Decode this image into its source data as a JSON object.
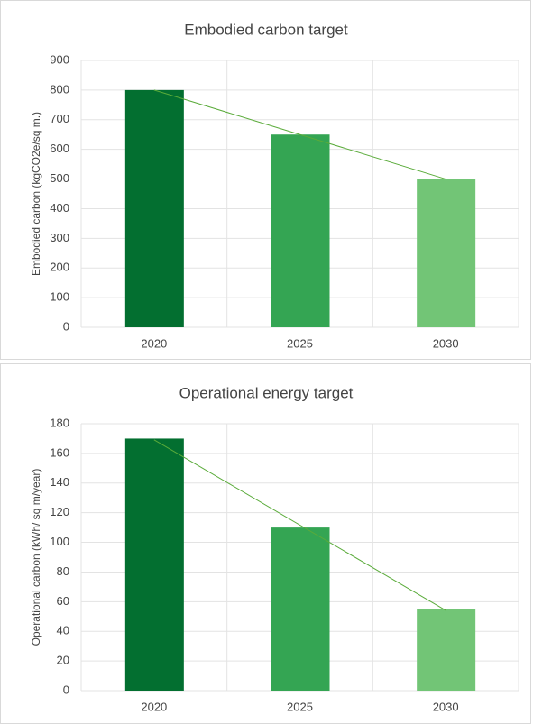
{
  "chart_data": [
    {
      "type": "bar",
      "title": "Embodied carbon target",
      "y_label": "Embodied carbon (kgCO2e/sq m.)",
      "categories": [
        "2020",
        "2025",
        "2030"
      ],
      "values": [
        800,
        650,
        500
      ],
      "colors": [
        "#036f30",
        "#34a553",
        "#72c576"
      ],
      "ylim": [
        0,
        900
      ],
      "yticks": [
        0,
        100,
        200,
        300,
        400,
        500,
        600,
        700,
        800,
        900
      ],
      "grid": true,
      "trendline": {
        "type": "linear",
        "color": "#5aab3a"
      }
    },
    {
      "type": "bar",
      "title": "Operational energy target",
      "y_label": "Operational carbon (kWh/ sq m/year)",
      "categories": [
        "2020",
        "2025",
        "2030"
      ],
      "values": [
        170,
        110,
        55
      ],
      "colors": [
        "#036f30",
        "#34a553",
        "#72c576"
      ],
      "ylim": [
        0,
        180
      ],
      "yticks": [
        0,
        20,
        40,
        60,
        80,
        100,
        120,
        140,
        160,
        180
      ],
      "grid": true,
      "trendline": {
        "type": "linear",
        "color": "#5aab3a"
      }
    }
  ]
}
